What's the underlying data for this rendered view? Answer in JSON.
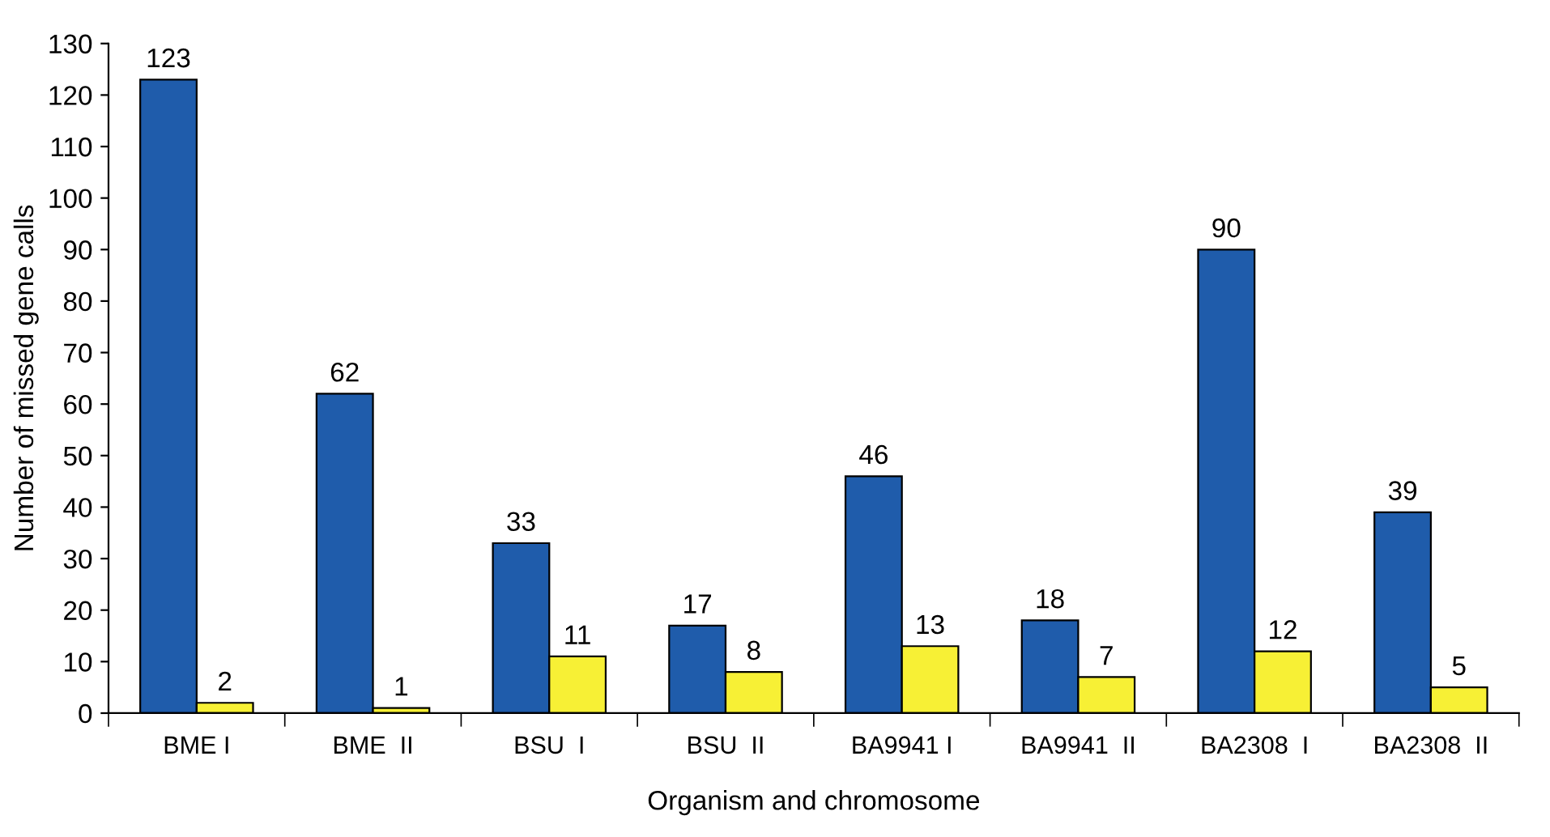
{
  "chart_data": {
    "type": "bar",
    "xlabel": "Organism and chromosome",
    "ylabel": "Number of missed gene calls",
    "categories": [
      "BME I",
      "BME  II",
      "BSU  I",
      "BSU  II",
      "BA9941 I",
      "BA9941  II",
      "BA2308  I",
      "BA2308  II"
    ],
    "series": [
      {
        "color": "#1f5cab",
        "values": [
          123,
          62,
          33,
          17,
          46,
          18,
          90,
          39
        ]
      },
      {
        "color": "#f7f035",
        "values": [
          2,
          1,
          11,
          8,
          13,
          7,
          12,
          5
        ]
      }
    ],
    "ylim": [
      0,
      130
    ],
    "yticks": [
      0,
      10,
      20,
      30,
      40,
      50,
      60,
      70,
      80,
      90,
      100,
      110,
      120,
      130
    ],
    "data_labels": true,
    "grid": false,
    "legend": false
  }
}
